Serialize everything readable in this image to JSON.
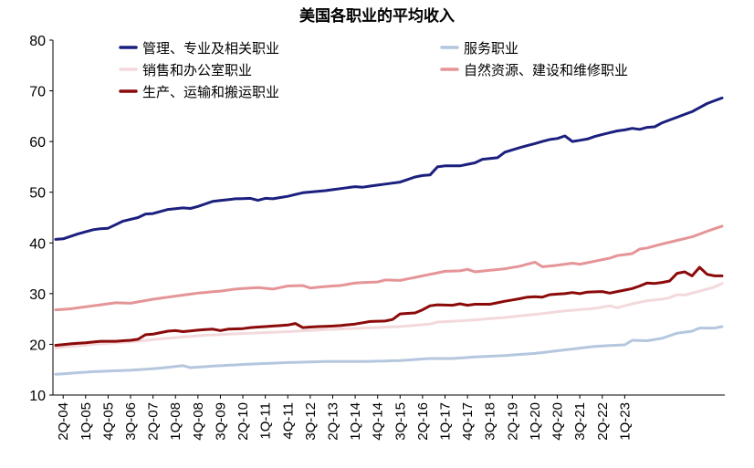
{
  "chart_data": {
    "type": "line",
    "title": "美国各职业的平均收入",
    "xlabel": "",
    "ylabel": "",
    "ylim": [
      10,
      80
    ],
    "yticks": [
      10,
      20,
      30,
      40,
      50,
      60,
      70,
      80
    ],
    "grid": false,
    "legend_position": "top-left",
    "x_labels": [
      "2Q-04",
      "1Q-05",
      "4Q-05",
      "3Q-06",
      "2Q-07",
      "1Q-08",
      "4Q-08",
      "3Q-09",
      "2Q-10",
      "1Q-11",
      "4Q-11",
      "3Q-12",
      "2Q-13",
      "1Q-14",
      "4Q-14",
      "3Q-15",
      "2Q-16",
      "1Q-17",
      "4Q-17",
      "3Q-18",
      "2Q-19",
      "1Q-20",
      "4Q-20",
      "3Q-21",
      "2Q-22",
      "1Q-23"
    ],
    "series": [
      {
        "name": "管理、专业及相关职业",
        "color": "#1b1f7e",
        "anchors": [
          [
            0,
            40.7
          ],
          [
            1,
            40.8
          ],
          [
            3,
            41.8
          ],
          [
            5,
            42.6
          ],
          [
            6,
            42.8
          ],
          [
            7,
            42.9
          ],
          [
            9,
            44.3
          ],
          [
            11,
            45.0
          ],
          [
            12,
            45.7
          ],
          [
            13,
            45.8
          ],
          [
            15,
            46.6
          ],
          [
            17,
            46.9
          ],
          [
            18,
            46.8
          ],
          [
            19,
            47.2
          ],
          [
            21,
            48.2
          ],
          [
            24,
            48.7
          ],
          [
            26,
            48.8
          ],
          [
            27,
            48.4
          ],
          [
            28,
            48.8
          ],
          [
            29,
            48.7
          ],
          [
            31,
            49.2
          ],
          [
            33,
            49.9
          ],
          [
            36,
            50.3
          ],
          [
            38,
            50.7
          ],
          [
            40,
            51.1
          ],
          [
            41,
            51.0
          ],
          [
            43,
            51.4
          ],
          [
            46,
            52.0
          ],
          [
            48,
            53.0
          ],
          [
            49,
            53.3
          ],
          [
            50,
            53.4
          ],
          [
            51,
            55.0
          ],
          [
            52,
            55.2
          ],
          [
            54,
            55.2
          ],
          [
            56,
            55.8
          ],
          [
            57,
            56.5
          ],
          [
            59,
            56.8
          ],
          [
            60,
            57.9
          ],
          [
            62,
            58.8
          ],
          [
            64,
            59.6
          ],
          [
            66,
            60.4
          ],
          [
            67,
            60.6
          ],
          [
            68,
            61.1
          ],
          [
            69,
            60.0
          ],
          [
            71,
            60.5
          ],
          [
            72,
            61.0
          ],
          [
            73,
            61.4
          ],
          [
            75,
            62.1
          ],
          [
            76,
            62.3
          ],
          [
            77,
            62.6
          ],
          [
            78,
            62.4
          ],
          [
            79,
            62.8
          ],
          [
            80,
            62.9
          ],
          [
            81,
            63.7
          ],
          [
            83,
            64.8
          ],
          [
            85,
            65.9
          ],
          [
            87,
            67.5
          ],
          [
            89,
            68.6
          ]
        ]
      },
      {
        "name": "服务职业",
        "color": "#b4c7de",
        "anchors": [
          [
            0,
            14.1
          ],
          [
            5,
            14.6
          ],
          [
            10,
            14.9
          ],
          [
            14,
            15.3
          ],
          [
            17,
            15.8
          ],
          [
            18,
            15.4
          ],
          [
            21,
            15.7
          ],
          [
            26,
            16.1
          ],
          [
            31,
            16.4
          ],
          [
            36,
            16.6
          ],
          [
            41,
            16.6
          ],
          [
            46,
            16.8
          ],
          [
            50,
            17.2
          ],
          [
            53,
            17.2
          ],
          [
            56,
            17.5
          ],
          [
            60,
            17.8
          ],
          [
            64,
            18.2
          ],
          [
            68,
            18.9
          ],
          [
            72,
            19.6
          ],
          [
            76,
            19.9
          ],
          [
            77,
            20.8
          ],
          [
            79,
            20.7
          ],
          [
            81,
            21.2
          ],
          [
            83,
            22.2
          ],
          [
            85,
            22.6
          ],
          [
            86,
            23.2
          ],
          [
            88,
            23.2
          ],
          [
            89,
            23.5
          ]
        ]
      },
      {
        "name": "销售和办公室职业",
        "color": "#f3d9dc",
        "anchors": [
          [
            0,
            19.3
          ],
          [
            5,
            20.0
          ],
          [
            10,
            20.5
          ],
          [
            15,
            21.2
          ],
          [
            20,
            21.8
          ],
          [
            26,
            22.2
          ],
          [
            31,
            22.5
          ],
          [
            36,
            22.9
          ],
          [
            41,
            23.2
          ],
          [
            46,
            23.5
          ],
          [
            50,
            24.0
          ],
          [
            51,
            24.4
          ],
          [
            55,
            24.7
          ],
          [
            60,
            25.3
          ],
          [
            64,
            25.9
          ],
          [
            68,
            26.6
          ],
          [
            72,
            27.1
          ],
          [
            74,
            27.6
          ],
          [
            75,
            27.2
          ],
          [
            77,
            28.0
          ],
          [
            79,
            28.6
          ],
          [
            81,
            28.9
          ],
          [
            82,
            29.2
          ],
          [
            83,
            29.8
          ],
          [
            84,
            29.7
          ],
          [
            86,
            30.5
          ],
          [
            88,
            31.3
          ],
          [
            89,
            32.0
          ]
        ]
      },
      {
        "name": "自然资源、建设和维修职业",
        "color": "#e59497",
        "anchors": [
          [
            0,
            26.8
          ],
          [
            2,
            27.0
          ],
          [
            5,
            27.6
          ],
          [
            8,
            28.2
          ],
          [
            10,
            28.1
          ],
          [
            13,
            28.9
          ],
          [
            16,
            29.5
          ],
          [
            19,
            30.1
          ],
          [
            22,
            30.5
          ],
          [
            24,
            30.9
          ],
          [
            27,
            31.2
          ],
          [
            29,
            30.9
          ],
          [
            31,
            31.5
          ],
          [
            33,
            31.6
          ],
          [
            34,
            31.1
          ],
          [
            36,
            31.4
          ],
          [
            38,
            31.6
          ],
          [
            40,
            32.1
          ],
          [
            43,
            32.3
          ],
          [
            44,
            32.7
          ],
          [
            46,
            32.6
          ],
          [
            48,
            33.2
          ],
          [
            50,
            33.8
          ],
          [
            52,
            34.4
          ],
          [
            54,
            34.5
          ],
          [
            55,
            34.8
          ],
          [
            56,
            34.3
          ],
          [
            58,
            34.6
          ],
          [
            60,
            34.9
          ],
          [
            62,
            35.4
          ],
          [
            63,
            35.8
          ],
          [
            64,
            36.2
          ],
          [
            65,
            35.3
          ],
          [
            67,
            35.6
          ],
          [
            69,
            36.0
          ],
          [
            70,
            35.8
          ],
          [
            72,
            36.4
          ],
          [
            74,
            37.0
          ],
          [
            75,
            37.5
          ],
          [
            77,
            37.9
          ],
          [
            78,
            38.8
          ],
          [
            79,
            39.0
          ],
          [
            81,
            39.8
          ],
          [
            83,
            40.5
          ],
          [
            85,
            41.2
          ],
          [
            87,
            42.3
          ],
          [
            89,
            43.3
          ]
        ]
      },
      {
        "name": "生产、运输和搬运职业",
        "color": "#8b0a0a",
        "anchors": [
          [
            0,
            19.8
          ],
          [
            2,
            20.1
          ],
          [
            4,
            20.3
          ],
          [
            6,
            20.6
          ],
          [
            8,
            20.6
          ],
          [
            10,
            20.8
          ],
          [
            11,
            21.0
          ],
          [
            12,
            21.9
          ],
          [
            13,
            22.0
          ],
          [
            15,
            22.6
          ],
          [
            16,
            22.7
          ],
          [
            17,
            22.5
          ],
          [
            19,
            22.8
          ],
          [
            21,
            23.0
          ],
          [
            22,
            22.7
          ],
          [
            23,
            23.0
          ],
          [
            25,
            23.1
          ],
          [
            26,
            23.3
          ],
          [
            27,
            23.4
          ],
          [
            29,
            23.6
          ],
          [
            31,
            23.8
          ],
          [
            32,
            24.1
          ],
          [
            33,
            23.3
          ],
          [
            35,
            23.5
          ],
          [
            37,
            23.6
          ],
          [
            38,
            23.7
          ],
          [
            40,
            24.0
          ],
          [
            42,
            24.5
          ],
          [
            44,
            24.6
          ],
          [
            45,
            24.9
          ],
          [
            46,
            26.0
          ],
          [
            48,
            26.2
          ],
          [
            49,
            26.8
          ],
          [
            50,
            27.6
          ],
          [
            51,
            27.8
          ],
          [
            53,
            27.7
          ],
          [
            54,
            28.0
          ],
          [
            55,
            27.7
          ],
          [
            56,
            27.9
          ],
          [
            58,
            27.9
          ],
          [
            60,
            28.5
          ],
          [
            62,
            29.0
          ],
          [
            63,
            29.3
          ],
          [
            64,
            29.4
          ],
          [
            65,
            29.3
          ],
          [
            66,
            29.8
          ],
          [
            68,
            30.0
          ],
          [
            69,
            30.2
          ],
          [
            70,
            30.0
          ],
          [
            71,
            30.3
          ],
          [
            73,
            30.4
          ],
          [
            74,
            30.1
          ],
          [
            75,
            30.4
          ],
          [
            77,
            31.0
          ],
          [
            78,
            31.5
          ],
          [
            79,
            32.1
          ],
          [
            80,
            32.0
          ],
          [
            81,
            32.2
          ],
          [
            82,
            32.5
          ],
          [
            83,
            34.0
          ],
          [
            84,
            34.3
          ],
          [
            85,
            33.5
          ],
          [
            86,
            35.2
          ],
          [
            87,
            33.8
          ],
          [
            88,
            33.5
          ],
          [
            89,
            33.5
          ]
        ]
      }
    ]
  }
}
